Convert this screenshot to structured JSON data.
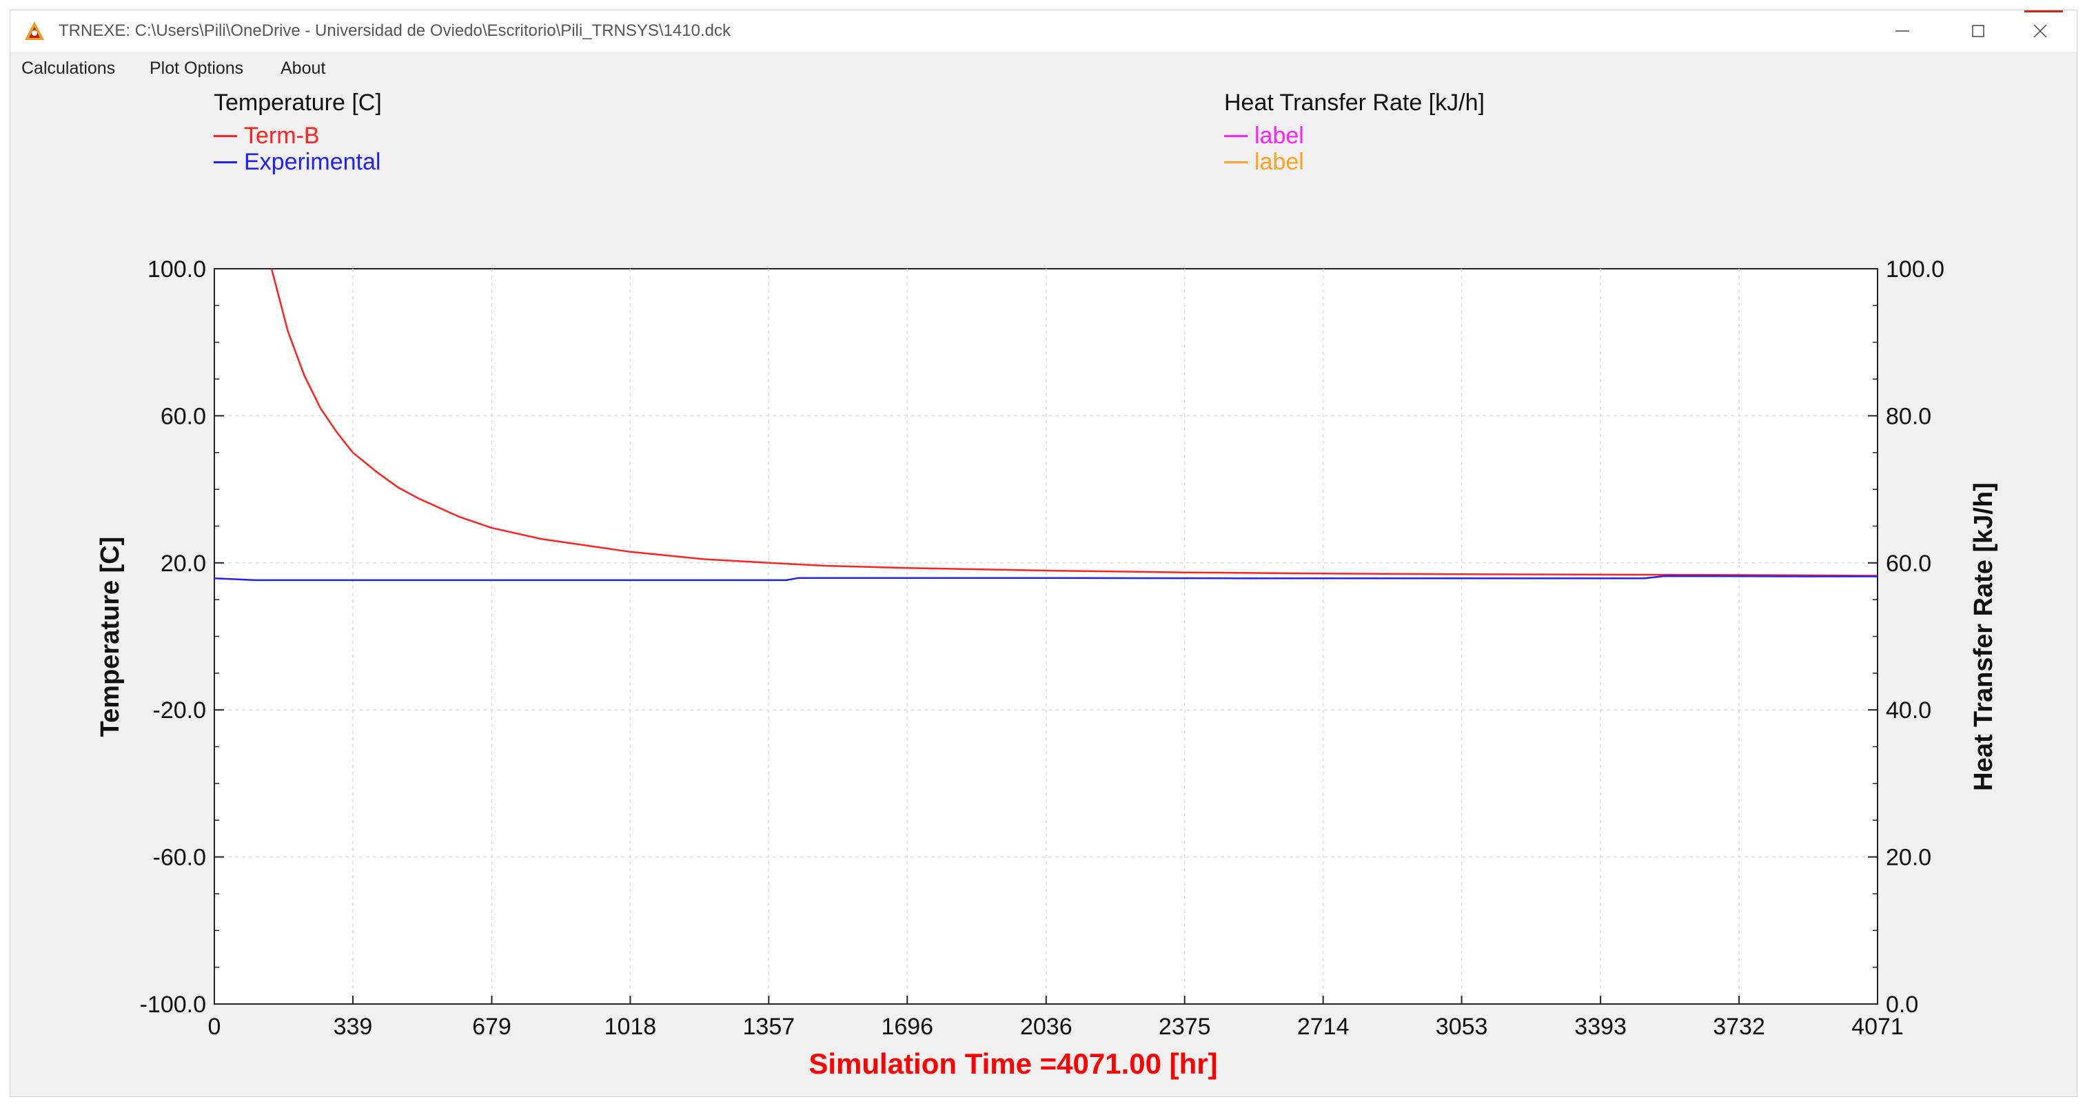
{
  "window": {
    "title": "TRNEXE: C:\\Users\\Pili\\OneDrive - Universidad de Oviedo\\Escritorio\\Pili_TRNSYS\\1410.dck",
    "app_icon": "trnsys-logo-icon",
    "controls": {
      "minimize_icon": "minimize-icon",
      "maximize_icon": "maximize-icon",
      "close_icon": "close-icon"
    }
  },
  "menu": {
    "items": [
      "Calculations",
      "Plot Options",
      "About"
    ]
  },
  "legend": {
    "left": {
      "heading": "Temperature [C]",
      "entries": [
        {
          "label": "Term-B",
          "color": "#ff2020"
        },
        {
          "label": "Experimental",
          "color": "#2020ff"
        }
      ]
    },
    "right": {
      "heading": "Heat Transfer Rate [kJ/h]",
      "entries": [
        {
          "label": "label",
          "color": "#ff20ff"
        },
        {
          "label": "label",
          "color": "#ffa020"
        }
      ]
    }
  },
  "chart_data": {
    "type": "line",
    "xlabel": "Simulation Time =4071.00 [hr]",
    "ylabel": "Temperature [C]",
    "y2label": "Heat Transfer Rate [kJ/h]",
    "xlim": [
      0,
      4071
    ],
    "ylim": [
      -100,
      100
    ],
    "y2lim": [
      0,
      100
    ],
    "x_ticks": [
      "0",
      "339",
      "679",
      "1018",
      "1357",
      "1696",
      "2036",
      "2375",
      "2714",
      "3053",
      "3393",
      "3732",
      "4071"
    ],
    "y_ticks": [
      "-100.0",
      "-60.0",
      "-20.0",
      "20.0",
      "60.0",
      "100.0"
    ],
    "y2_ticks": [
      "0.0",
      "20.0",
      "40.0",
      "60.0",
      "80.0",
      "100.0"
    ],
    "grid": true,
    "colors": {
      "xlabel": "#ff0000",
      "axis_text": "#111111"
    },
    "series": [
      {
        "name": "Term-B",
        "color": "#ff2020",
        "x": [
          140,
          180,
          220,
          260,
          300,
          339,
          400,
          450,
          500,
          600,
          679,
          800,
          1018,
          1200,
          1357,
          1500,
          1696,
          2036,
          2375,
          2714,
          3053,
          3393,
          3732,
          3900,
          4071
        ],
        "y": [
          100,
          83,
          71,
          62,
          55.5,
          50,
          44.5,
          40.5,
          37.5,
          32.5,
          29.5,
          26.5,
          23,
          21,
          20,
          19.2,
          18.6,
          17.9,
          17.4,
          17.1,
          16.9,
          16.8,
          16.7,
          16.6,
          16.5
        ]
      },
      {
        "name": "Experimental",
        "color": "#2020ff",
        "x": [
          0,
          100,
          500,
          1000,
          1400,
          1430,
          2000,
          2500,
          3000,
          3500,
          3550,
          3900,
          4071
        ],
        "y": [
          15.8,
          15.3,
          15.3,
          15.3,
          15.3,
          15.9,
          15.9,
          15.8,
          15.8,
          15.8,
          16.4,
          16.3,
          16.3
        ]
      }
    ]
  }
}
